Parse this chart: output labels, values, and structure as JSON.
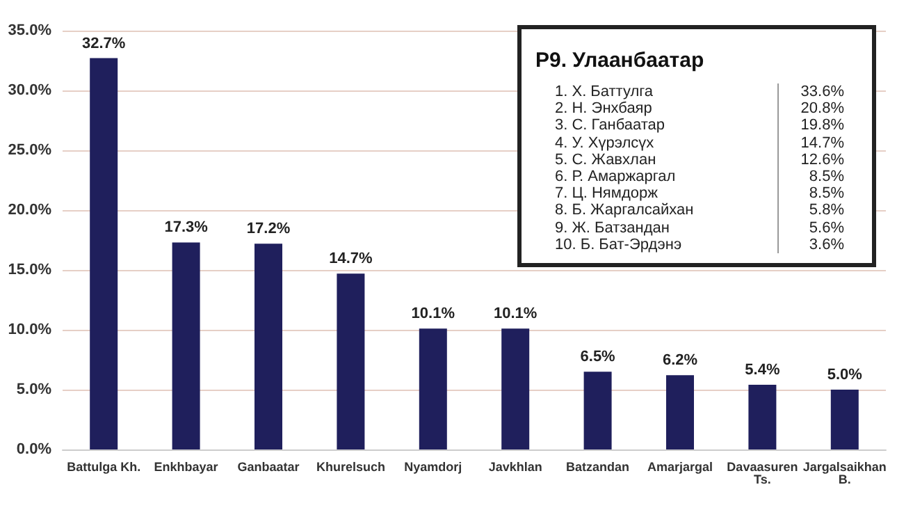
{
  "chart_data": [
    {
      "type": "bar",
      "categories": [
        "Battulga Kh.",
        "Enkhbayar",
        "Ganbaatar",
        "Khurelsuch",
        "Nyamdorj",
        "Javkhlan",
        "Batzandan",
        "Amarjargal",
        "Davaasuren Ts.",
        "Jargalsaikhan B."
      ],
      "values": [
        32.7,
        17.3,
        17.2,
        14.7,
        10.1,
        10.1,
        6.5,
        6.2,
        5.4,
        5.0
      ],
      "value_labels": [
        "32.7%",
        "17.3%",
        "17.2%",
        "14.7%",
        "10.1%",
        "10.1%",
        "6.5%",
        "6.2%",
        "5.4%",
        "5.0%"
      ],
      "color": "#1f1f5c",
      "ylim": [
        0,
        35
      ],
      "yticks": [
        {
          "value": 0,
          "label": "0.0%"
        },
        {
          "value": 5,
          "label": "5.0%"
        },
        {
          "value": 10,
          "label": "10.0%"
        },
        {
          "value": 15,
          "label": "15.0%"
        },
        {
          "value": 20,
          "label": "20.0%"
        },
        {
          "value": 25,
          "label": "25.0%"
        },
        {
          "value": 30,
          "label": "30.0%"
        },
        {
          "value": 35,
          "label": "35.0%"
        }
      ],
      "grid": "y"
    },
    {
      "type": "other",
      "title": "Р9. Улаанбаатар",
      "annotations": [
        "1. Х. Баттулга",
        "33.6%",
        "2. Н. Энхбаяр",
        "20.8%",
        "3. С. Ганбаатар",
        "19.8%",
        "4. У. Хүрэлсүх",
        "14.7%",
        "5. С. Жавхлан",
        "12.6%",
        "6. Р. Амаржаргал",
        "8.5%",
        "7. Ц. Нямдорж",
        "8.5%",
        "8. Б. Жаргалсайхан",
        "5.8%",
        "9. Ж. Батзандан",
        "5.6%",
        "10. Б. Бат-Эрдэнэ",
        "3.6%"
      ]
    }
  ]
}
